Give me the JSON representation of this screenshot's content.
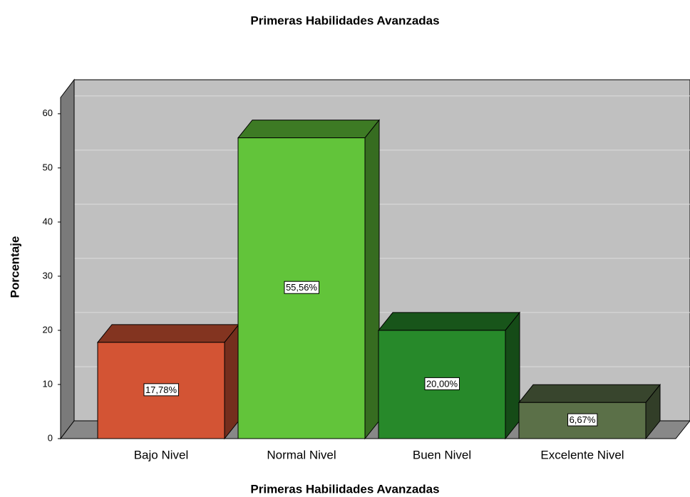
{
  "chart_data": {
    "type": "bar3d",
    "title": "Primeras  Habilidades Avanzadas",
    "x_label": "Primeras  Habilidades Avanzadas",
    "y_label": "Porcentaje",
    "categories": [
      "Bajo Nivel",
      "Normal Nivel",
      "Buen Nivel",
      "Excelente Nivel"
    ],
    "values": [
      17.78,
      55.56,
      20.0,
      6.67
    ],
    "value_labels": [
      "17,78%",
      "55,56%",
      "20,00%",
      "6,67%"
    ],
    "colors": [
      "#d35434",
      "#62c43a",
      "#27892a",
      "#5b7048"
    ],
    "ylim": [
      0,
      63
    ],
    "yticks": [
      0,
      10,
      20,
      30,
      40,
      50,
      60
    ],
    "grid": true
  }
}
